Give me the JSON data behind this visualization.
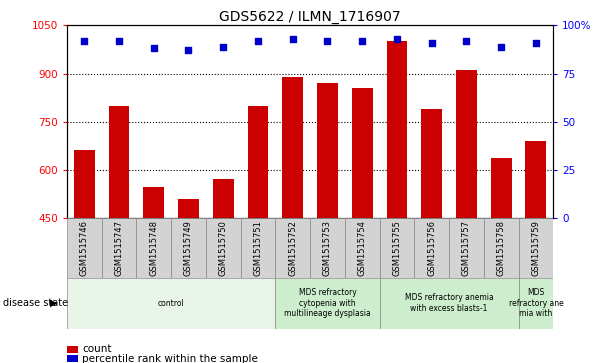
{
  "title": "GDS5622 / ILMN_1716907",
  "samples": [
    "GSM1515746",
    "GSM1515747",
    "GSM1515748",
    "GSM1515749",
    "GSM1515750",
    "GSM1515751",
    "GSM1515752",
    "GSM1515753",
    "GSM1515754",
    "GSM1515755",
    "GSM1515756",
    "GSM1515757",
    "GSM1515758",
    "GSM1515759"
  ],
  "counts": [
    660,
    800,
    545,
    510,
    570,
    800,
    890,
    870,
    855,
    1000,
    790,
    910,
    635,
    690
  ],
  "percentile_ranks": [
    92,
    92,
    88,
    87,
    89,
    92,
    93,
    92,
    92,
    93,
    91,
    92,
    89,
    91
  ],
  "ylim_left": [
    450,
    1050
  ],
  "ylim_right": [
    0,
    100
  ],
  "yticks_left": [
    450,
    600,
    750,
    900,
    1050
  ],
  "yticks_right": [
    0,
    25,
    50,
    75,
    100
  ],
  "bar_color": "#cc0000",
  "dot_color": "#0000cc",
  "tick_bg": "#d3d3d3",
  "disease_groups": [
    {
      "label": "control",
      "start": 0,
      "end": 6,
      "color": "#e8f5e8"
    },
    {
      "label": "MDS refractory\ncytopenia with\nmultilineage dysplasia",
      "start": 6,
      "end": 9,
      "color": "#cceecc"
    },
    {
      "label": "MDS refractory anemia\nwith excess blasts-1",
      "start": 9,
      "end": 13,
      "color": "#cceecc"
    },
    {
      "label": "MDS\nrefractory ane\nmia with",
      "start": 13,
      "end": 14,
      "color": "#cceecc"
    }
  ],
  "legend_count_label": "count",
  "legend_pct_label": "percentile rank within the sample",
  "disease_state_label": "disease state"
}
